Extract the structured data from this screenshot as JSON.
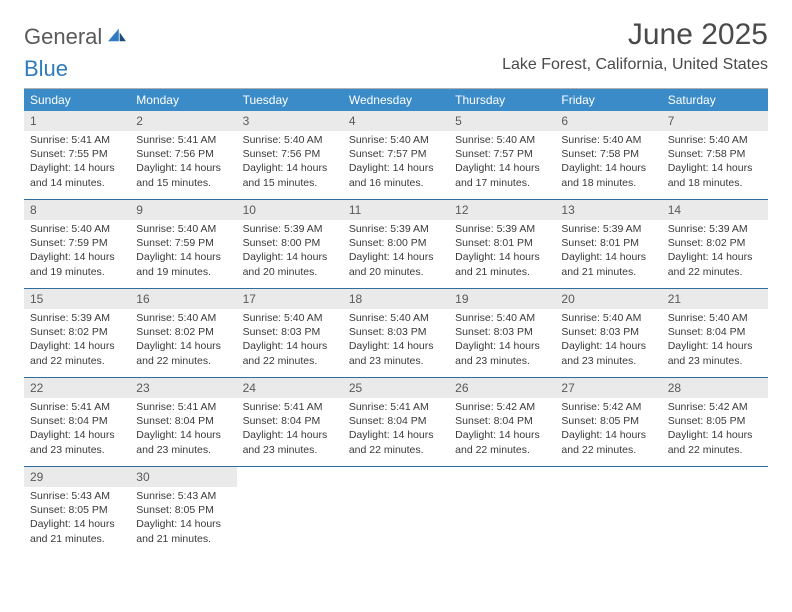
{
  "brand": {
    "part1": "General",
    "part2": "Blue"
  },
  "title": {
    "month": "June 2025",
    "location": "Lake Forest, California, United States"
  },
  "colors": {
    "header_bg": "#3b8bc8",
    "header_text": "#ffffff",
    "daynum_bg": "#eaeaea",
    "week_divider": "#2f6da0",
    "text": "#3a3a3a",
    "muted": "#5a5a5a",
    "logo_blue": "#2f7bbf",
    "page_bg": "#ffffff"
  },
  "day_headers": [
    "Sunday",
    "Monday",
    "Tuesday",
    "Wednesday",
    "Thursday",
    "Friday",
    "Saturday"
  ],
  "weeks": [
    [
      {
        "n": "1",
        "sr": "5:41 AM",
        "ss": "7:55 PM",
        "dl": "14 hours and 14 minutes."
      },
      {
        "n": "2",
        "sr": "5:41 AM",
        "ss": "7:56 PM",
        "dl": "14 hours and 15 minutes."
      },
      {
        "n": "3",
        "sr": "5:40 AM",
        "ss": "7:56 PM",
        "dl": "14 hours and 15 minutes."
      },
      {
        "n": "4",
        "sr": "5:40 AM",
        "ss": "7:57 PM",
        "dl": "14 hours and 16 minutes."
      },
      {
        "n": "5",
        "sr": "5:40 AM",
        "ss": "7:57 PM",
        "dl": "14 hours and 17 minutes."
      },
      {
        "n": "6",
        "sr": "5:40 AM",
        "ss": "7:58 PM",
        "dl": "14 hours and 18 minutes."
      },
      {
        "n": "7",
        "sr": "5:40 AM",
        "ss": "7:58 PM",
        "dl": "14 hours and 18 minutes."
      }
    ],
    [
      {
        "n": "8",
        "sr": "5:40 AM",
        "ss": "7:59 PM",
        "dl": "14 hours and 19 minutes."
      },
      {
        "n": "9",
        "sr": "5:40 AM",
        "ss": "7:59 PM",
        "dl": "14 hours and 19 minutes."
      },
      {
        "n": "10",
        "sr": "5:39 AM",
        "ss": "8:00 PM",
        "dl": "14 hours and 20 minutes."
      },
      {
        "n": "11",
        "sr": "5:39 AM",
        "ss": "8:00 PM",
        "dl": "14 hours and 20 minutes."
      },
      {
        "n": "12",
        "sr": "5:39 AM",
        "ss": "8:01 PM",
        "dl": "14 hours and 21 minutes."
      },
      {
        "n": "13",
        "sr": "5:39 AM",
        "ss": "8:01 PM",
        "dl": "14 hours and 21 minutes."
      },
      {
        "n": "14",
        "sr": "5:39 AM",
        "ss": "8:02 PM",
        "dl": "14 hours and 22 minutes."
      }
    ],
    [
      {
        "n": "15",
        "sr": "5:39 AM",
        "ss": "8:02 PM",
        "dl": "14 hours and 22 minutes."
      },
      {
        "n": "16",
        "sr": "5:40 AM",
        "ss": "8:02 PM",
        "dl": "14 hours and 22 minutes."
      },
      {
        "n": "17",
        "sr": "5:40 AM",
        "ss": "8:03 PM",
        "dl": "14 hours and 22 minutes."
      },
      {
        "n": "18",
        "sr": "5:40 AM",
        "ss": "8:03 PM",
        "dl": "14 hours and 23 minutes."
      },
      {
        "n": "19",
        "sr": "5:40 AM",
        "ss": "8:03 PM",
        "dl": "14 hours and 23 minutes."
      },
      {
        "n": "20",
        "sr": "5:40 AM",
        "ss": "8:03 PM",
        "dl": "14 hours and 23 minutes."
      },
      {
        "n": "21",
        "sr": "5:40 AM",
        "ss": "8:04 PM",
        "dl": "14 hours and 23 minutes."
      }
    ],
    [
      {
        "n": "22",
        "sr": "5:41 AM",
        "ss": "8:04 PM",
        "dl": "14 hours and 23 minutes."
      },
      {
        "n": "23",
        "sr": "5:41 AM",
        "ss": "8:04 PM",
        "dl": "14 hours and 23 minutes."
      },
      {
        "n": "24",
        "sr": "5:41 AM",
        "ss": "8:04 PM",
        "dl": "14 hours and 23 minutes."
      },
      {
        "n": "25",
        "sr": "5:41 AM",
        "ss": "8:04 PM",
        "dl": "14 hours and 22 minutes."
      },
      {
        "n": "26",
        "sr": "5:42 AM",
        "ss": "8:04 PM",
        "dl": "14 hours and 22 minutes."
      },
      {
        "n": "27",
        "sr": "5:42 AM",
        "ss": "8:05 PM",
        "dl": "14 hours and 22 minutes."
      },
      {
        "n": "28",
        "sr": "5:42 AM",
        "ss": "8:05 PM",
        "dl": "14 hours and 22 minutes."
      }
    ],
    [
      {
        "n": "29",
        "sr": "5:43 AM",
        "ss": "8:05 PM",
        "dl": "14 hours and 21 minutes."
      },
      {
        "n": "30",
        "sr": "5:43 AM",
        "ss": "8:05 PM",
        "dl": "14 hours and 21 minutes."
      },
      null,
      null,
      null,
      null,
      null
    ]
  ],
  "labels": {
    "sunrise": "Sunrise:",
    "sunset": "Sunset:",
    "daylight": "Daylight:"
  }
}
